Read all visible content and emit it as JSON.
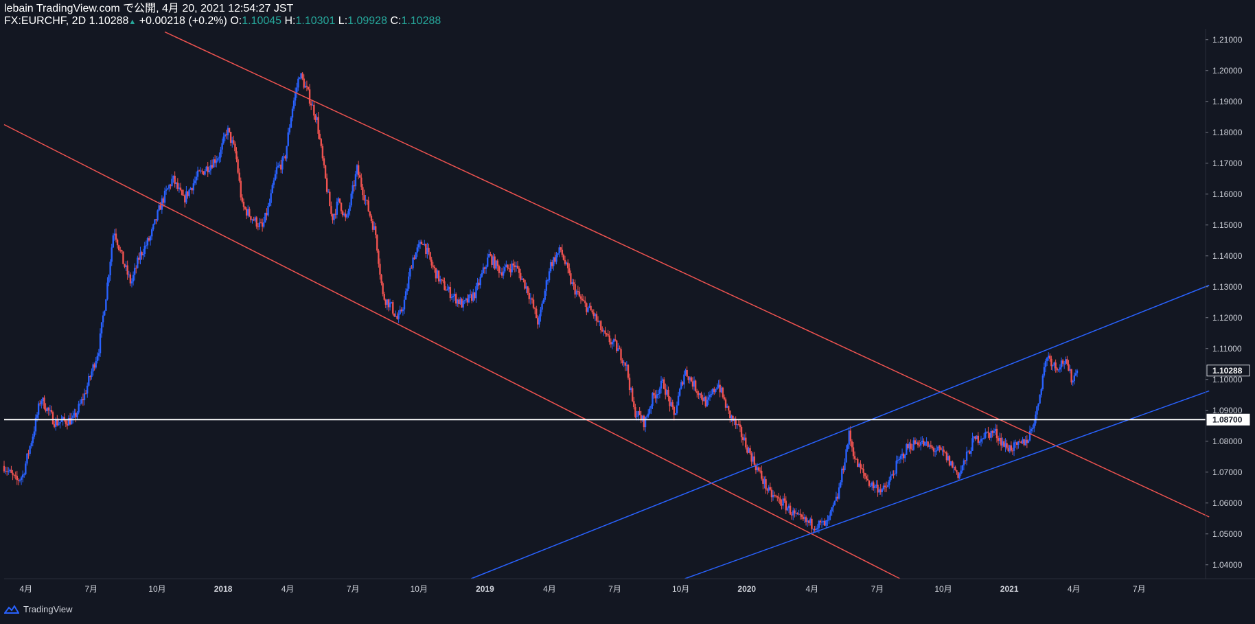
{
  "header": {
    "line1": "lebain TradingView.com で公開, 4月 20, 2021 12:54:27 JST",
    "symbol": "FX:EURCHF, 2D",
    "price": "1.10288",
    "change": "+0.00218 (+0.2%)",
    "o_label": "O:",
    "o_val": "1.10045",
    "h_label": "H:",
    "h_val": "1.10301",
    "l_label": "L:",
    "l_val": "1.09928",
    "c_label": "C:",
    "c_val": "1.10288"
  },
  "footer": {
    "brand": "TradingView"
  },
  "colors": {
    "background": "#131722",
    "up": "#2962ff",
    "down": "#ef5350",
    "upper_trendlines": "#ef5350",
    "channel_lines": "#2962ff",
    "horizontal_level": "#ffffff"
  },
  "chart_data": {
    "type": "candlestick",
    "symbol": "FX:EURCHF",
    "timeframe": "2D",
    "x_ticks": [
      "4月",
      "7月",
      "10月",
      "2018",
      "4月",
      "7月",
      "10月",
      "2019",
      "4月",
      "7月",
      "10月",
      "2020",
      "4月",
      "7月",
      "10月",
      "2021",
      "4月",
      "7月"
    ],
    "y_ticks": [
      "1.21000",
      "1.20000",
      "1.19000",
      "1.18000",
      "1.17000",
      "1.16000",
      "1.15000",
      "1.14000",
      "1.13000",
      "1.12000",
      "1.11000",
      "1.10000",
      "1.09000",
      "1.08000",
      "1.07000",
      "1.06000",
      "1.05000",
      "1.04000"
    ],
    "ylim": [
      1.0355,
      1.2135
    ],
    "xlim": [
      "2017-03-15",
      "2021-10-15"
    ],
    "price_labels": [
      {
        "value": 1.10288,
        "text": "1.10288",
        "style": "current"
      },
      {
        "value": 1.087,
        "text": "1.08700",
        "style": "level"
      }
    ],
    "horizontal_line": 1.087,
    "trendlines": [
      {
        "name": "descending-upper",
        "color": "red",
        "from": [
          "2017-10-25",
          1.2125
        ],
        "to": [
          "2021-10-20",
          1.0555
        ]
      },
      {
        "name": "descending-lower",
        "color": "red",
        "from": [
          "2017-03-15",
          1.1825
        ],
        "to": [
          "2020-08-15",
          1.0355
        ]
      },
      {
        "name": "ascending-upper",
        "color": "blue",
        "from": [
          "2018-12-26",
          1.0355
        ],
        "to": [
          "2021-10-20",
          1.1305
        ]
      },
      {
        "name": "ascending-lower",
        "color": "blue",
        "from": [
          "2019-10-20",
          1.0355
        ],
        "to": [
          "2021-10-20",
          1.0963
        ]
      }
    ],
    "path": [
      [
        "2017-03-15",
        1.072
      ],
      [
        "2017-04-01",
        1.067
      ],
      [
        "2017-04-10",
        1.069
      ],
      [
        "2017-04-25",
        1.083
      ],
      [
        "2017-05-05",
        1.094
      ],
      [
        "2017-05-25",
        1.086
      ],
      [
        "2017-06-20",
        1.087
      ],
      [
        "2017-07-05",
        1.095
      ],
      [
        "2017-07-25",
        1.11
      ],
      [
        "2017-08-05",
        1.129
      ],
      [
        "2017-08-15",
        1.149
      ],
      [
        "2017-08-28",
        1.138
      ],
      [
        "2017-09-08",
        1.131
      ],
      [
        "2017-09-20",
        1.14
      ],
      [
        "2017-10-05",
        1.146
      ],
      [
        "2017-10-20",
        1.157
      ],
      [
        "2017-11-05",
        1.165
      ],
      [
        "2017-11-20",
        1.158
      ],
      [
        "2017-12-10",
        1.166
      ],
      [
        "2017-12-25",
        1.169
      ],
      [
        "2018-01-10",
        1.173
      ],
      [
        "2018-01-20",
        1.181
      ],
      [
        "2018-02-01",
        1.173
      ],
      [
        "2018-02-10",
        1.156
      ],
      [
        "2018-02-25",
        1.152
      ],
      [
        "2018-03-10",
        1.149
      ],
      [
        "2018-03-20",
        1.157
      ],
      [
        "2018-03-30",
        1.168
      ],
      [
        "2018-04-10",
        1.171
      ],
      [
        "2018-04-20",
        1.187
      ],
      [
        "2018-05-01",
        1.199
      ],
      [
        "2018-05-12",
        1.193
      ],
      [
        "2018-05-25",
        1.184
      ],
      [
        "2018-06-05",
        1.166
      ],
      [
        "2018-06-15",
        1.152
      ],
      [
        "2018-06-25",
        1.158
      ],
      [
        "2018-07-05",
        1.151
      ],
      [
        "2018-07-20",
        1.168
      ],
      [
        "2018-08-01",
        1.158
      ],
      [
        "2018-08-15",
        1.147
      ],
      [
        "2018-08-25",
        1.127
      ],
      [
        "2018-09-05",
        1.124
      ],
      [
        "2018-09-15",
        1.119
      ],
      [
        "2018-09-25",
        1.126
      ],
      [
        "2018-10-05",
        1.139
      ],
      [
        "2018-10-20",
        1.145
      ],
      [
        "2018-11-01",
        1.137
      ],
      [
        "2018-11-15",
        1.131
      ],
      [
        "2018-12-01",
        1.127
      ],
      [
        "2018-12-15",
        1.124
      ],
      [
        "2019-01-01",
        1.128
      ],
      [
        "2019-01-20",
        1.14
      ],
      [
        "2019-02-05",
        1.135
      ],
      [
        "2019-02-25",
        1.137
      ],
      [
        "2019-03-15",
        1.129
      ],
      [
        "2019-03-30",
        1.118
      ],
      [
        "2019-04-15",
        1.137
      ],
      [
        "2019-04-30",
        1.142
      ],
      [
        "2019-05-15",
        1.131
      ],
      [
        "2019-05-30",
        1.125
      ],
      [
        "2019-06-15",
        1.121
      ],
      [
        "2019-06-30",
        1.114
      ],
      [
        "2019-07-15",
        1.111
      ],
      [
        "2019-07-30",
        1.105
      ],
      [
        "2019-08-10",
        1.09
      ],
      [
        "2019-08-25",
        1.086
      ],
      [
        "2019-09-05",
        1.094
      ],
      [
        "2019-09-20",
        1.099
      ],
      [
        "2019-10-05",
        1.088
      ],
      [
        "2019-10-20",
        1.103
      ],
      [
        "2019-11-05",
        1.097
      ],
      [
        "2019-11-20",
        1.092
      ],
      [
        "2019-12-05",
        1.099
      ],
      [
        "2019-12-20",
        1.089
      ],
      [
        "2020-01-05",
        1.083
      ],
      [
        "2020-01-25",
        1.073
      ],
      [
        "2020-02-15",
        1.063
      ],
      [
        "2020-03-05",
        1.06
      ],
      [
        "2020-03-25",
        1.055
      ],
      [
        "2020-04-15",
        1.053
      ],
      [
        "2020-05-05",
        1.053
      ],
      [
        "2020-05-20",
        1.062
      ],
      [
        "2020-06-05",
        1.082
      ],
      [
        "2020-06-15",
        1.073
      ],
      [
        "2020-07-05",
        1.066
      ],
      [
        "2020-07-25",
        1.064
      ],
      [
        "2020-08-10",
        1.072
      ],
      [
        "2020-08-25",
        1.078
      ],
      [
        "2020-09-10",
        1.08
      ],
      [
        "2020-09-25",
        1.078
      ],
      [
        "2020-10-15",
        1.076
      ],
      [
        "2020-11-05",
        1.069
      ],
      [
        "2020-11-25",
        1.08
      ],
      [
        "2020-12-10",
        1.082
      ],
      [
        "2020-12-25",
        1.083
      ],
      [
        "2021-01-10",
        1.078
      ],
      [
        "2021-01-25",
        1.078
      ],
      [
        "2021-02-10",
        1.081
      ],
      [
        "2021-02-22",
        1.09
      ],
      [
        "2021-03-01",
        1.1
      ],
      [
        "2021-03-08",
        1.108
      ],
      [
        "2021-03-20",
        1.104
      ],
      [
        "2021-04-01",
        1.106
      ],
      [
        "2021-04-12",
        1.1
      ],
      [
        "2021-04-20",
        1.1029
      ]
    ]
  }
}
